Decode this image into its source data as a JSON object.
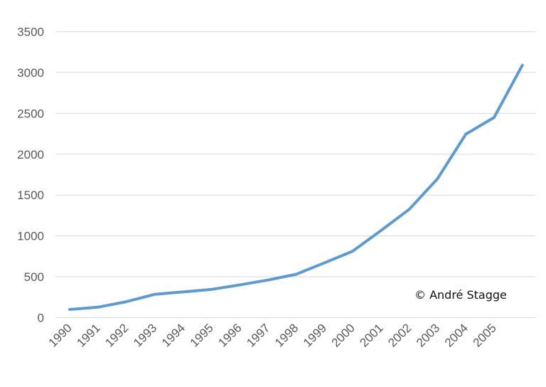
{
  "chart_data": {
    "type": "line",
    "title": "",
    "xlabel": "",
    "ylabel": "",
    "categories": [
      "1990",
      "1991",
      "1992",
      "1993",
      "1994",
      "1995",
      "1996",
      "1997",
      "1998",
      "1999",
      "2000",
      "2001",
      "2002",
      "2003",
      "2004",
      "2005",
      ""
    ],
    "series": [
      {
        "values": [
          100,
          128,
          195,
          285,
          315,
          345,
          400,
          460,
          530,
          670,
          813,
          1065,
          1325,
          1700,
          2245,
          2450,
          3090
        ],
        "color": "#5B9BD5"
      }
    ],
    "yticks": [
      "0",
      "500",
      "1000",
      "1500",
      "2000",
      "2500",
      "3000",
      "3500"
    ],
    "ylim": [
      0,
      3500
    ],
    "grid": true,
    "legend": "none",
    "annotation": "© André Stagge"
  }
}
